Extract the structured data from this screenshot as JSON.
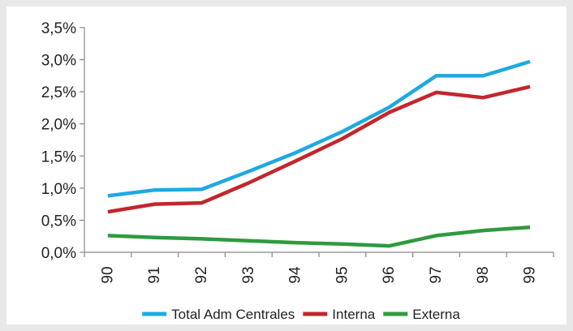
{
  "chart_data": {
    "type": "line",
    "x": [
      "90",
      "91",
      "92",
      "93",
      "94",
      "95",
      "96",
      "97",
      "98",
      "99"
    ],
    "series": [
      {
        "name": "Total Adm Centrales",
        "color": "#1ea9e1",
        "values": [
          0.0088,
          0.0097,
          0.0098,
          0.0126,
          0.0155,
          0.0188,
          0.0226,
          0.0275,
          0.0275,
          0.0297
        ]
      },
      {
        "name": "Interna",
        "color": "#c1272d",
        "values": [
          0.0063,
          0.0075,
          0.0077,
          0.0108,
          0.0142,
          0.0177,
          0.0218,
          0.0249,
          0.0241,
          0.0258
        ]
      },
      {
        "name": "Externa",
        "color": "#2f9a3e",
        "values": [
          0.0026,
          0.0023,
          0.0021,
          0.0018,
          0.0015,
          0.0013,
          0.001,
          0.0026,
          0.0034,
          0.0039
        ]
      }
    ],
    "yticks": [
      "0,0%",
      "0,5%",
      "1,0%",
      "1,5%",
      "2,0%",
      "2,5%",
      "3,0%",
      "3,5%"
    ],
    "ylim": [
      0,
      0.035
    ],
    "title": "",
    "xlabel": "",
    "ylabel": "",
    "grid": false,
    "legend_position": "bottom"
  }
}
